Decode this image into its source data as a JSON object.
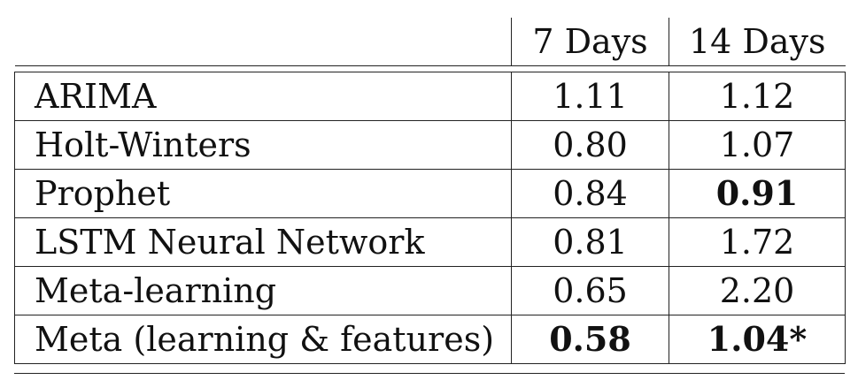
{
  "table": {
    "columns": [
      "",
      "7 Days",
      "14 Days"
    ],
    "rows": [
      {
        "method": "ARIMA",
        "d7": "1.11",
        "d14": "1.12",
        "bold7": false,
        "bold14": false
      },
      {
        "method": "Holt-Winters",
        "d7": "0.80",
        "d14": "1.07",
        "bold7": false,
        "bold14": false
      },
      {
        "method": "Prophet",
        "d7": "0.84",
        "d14": "0.91",
        "bold7": false,
        "bold14": true
      },
      {
        "method": "LSTM Neural Network",
        "d7": "0.81",
        "d14": "1.72",
        "bold7": false,
        "bold14": false
      },
      {
        "method": "Meta-learning",
        "d7": "0.65",
        "d14": "2.20",
        "bold7": false,
        "bold14": false
      },
      {
        "method": "Meta (learning & features)",
        "d7": "0.58",
        "d14": "1.04*",
        "bold7": true,
        "bold14": true
      }
    ]
  }
}
